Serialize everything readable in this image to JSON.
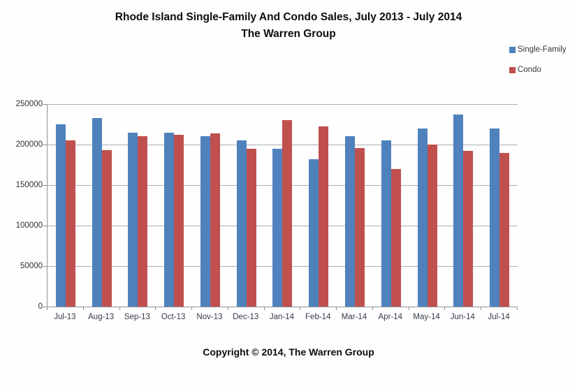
{
  "header": {
    "title_line1": "Rhode Island Single-Family And Condo Sales, July 2013 - July 2014",
    "title_line2": "The Warren Group"
  },
  "legend": {
    "position": "top-right",
    "items": [
      {
        "label": "Single-Family",
        "color": "#4F81BD"
      },
      {
        "label": "Condo",
        "color": "#C0504D"
      }
    ]
  },
  "footer": {
    "copyright": "Copyright © 2014, The Warren Group"
  },
  "chart_data": {
    "type": "bar",
    "title": "Rhode Island Single-Family And Condo Sales, July 2013 - July 2014",
    "subtitle": "The Warren Group",
    "xlabel": "",
    "ylabel": "",
    "ylim": [
      0,
      250000
    ],
    "ytick_interval": 50000,
    "ytick_labels": [
      "250000",
      "200000",
      "150000",
      "100000",
      "50000",
      "0"
    ],
    "grid": "horizontal",
    "legend_position": "top-right",
    "categories": [
      "Jul-13",
      "Aug-13",
      "Sep-13",
      "Oct-13",
      "Nov-13",
      "Dec-13",
      "Jan-14",
      "Feb-14",
      "Mar-14",
      "Apr-14",
      "May-14",
      "Jun-14",
      "Jul-14"
    ],
    "series": [
      {
        "name": "Single-Family",
        "color": "#4F81BD",
        "values": [
          225000,
          232500,
          215000,
          215000,
          210000,
          205000,
          195000,
          181500,
          210000,
          205000,
          220000,
          237500,
          220000
        ]
      },
      {
        "name": "Condo",
        "color": "#C0504D",
        "values": [
          205000,
          193000,
          210000,
          212000,
          214000,
          195000,
          230000,
          222500,
          196000,
          170000,
          200000,
          192000,
          190000
        ]
      }
    ]
  }
}
